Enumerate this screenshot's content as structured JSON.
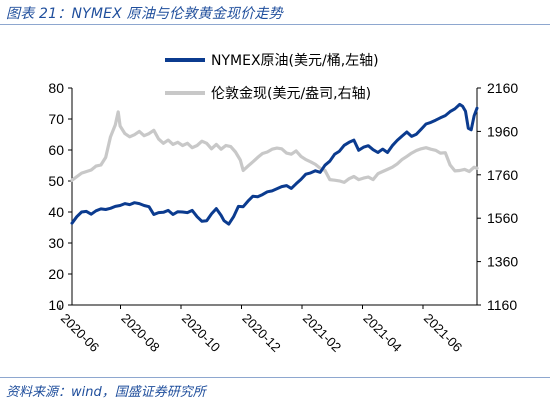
{
  "figure": {
    "title": "图表 21：NYMEX 原油与伦敦黄金现价走势",
    "source": "资料来源：wind，国盛证券研究所"
  },
  "chart_data": {
    "type": "line",
    "xlabels": [
      "2020-06",
      "2020-08",
      "2020-10",
      "2020-12",
      "2021-02",
      "2021-04",
      "2021-06"
    ],
    "y_left": {
      "range": [
        10,
        80
      ],
      "ticks": [
        10,
        20,
        30,
        40,
        50,
        60,
        70,
        80
      ]
    },
    "y_right": {
      "range": [
        1160,
        2160
      ],
      "ticks": [
        1160,
        1360,
        1560,
        1760,
        1960,
        2160
      ]
    },
    "grid": false,
    "legend_position": "top-right",
    "series": [
      {
        "name": "NYMEX原油(美元/桶,左轴)",
        "axis": "left",
        "color": "#0b3b8f",
        "values": [
          [
            0,
            36.4
          ],
          [
            5,
            38.5
          ],
          [
            10,
            40
          ],
          [
            15,
            40.2
          ],
          [
            20,
            39.3
          ],
          [
            25,
            40.4
          ],
          [
            30,
            41
          ],
          [
            35,
            40.8
          ],
          [
            40,
            41.2
          ],
          [
            45,
            41.8
          ],
          [
            50,
            42.1
          ],
          [
            55,
            42.7
          ],
          [
            60,
            42.4
          ],
          [
            65,
            43
          ],
          [
            70,
            42.7
          ],
          [
            75,
            42.1
          ],
          [
            80,
            41.7
          ],
          [
            85,
            39.2
          ],
          [
            90,
            39.8
          ],
          [
            95,
            39.9
          ],
          [
            100,
            40.5
          ],
          [
            105,
            39.2
          ],
          [
            110,
            40.1
          ],
          [
            115,
            40
          ],
          [
            120,
            39.8
          ],
          [
            125,
            40.5
          ],
          [
            130,
            38.5
          ],
          [
            135,
            37
          ],
          [
            140,
            37.2
          ],
          [
            145,
            39.4
          ],
          [
            150,
            41.1
          ],
          [
            155,
            38.9
          ],
          [
            158,
            37.2
          ],
          [
            163,
            36.1
          ],
          [
            168,
            38.5
          ],
          [
            173,
            41.8
          ],
          [
            178,
            41.7
          ],
          [
            183,
            43.5
          ],
          [
            188,
            45.1
          ],
          [
            193,
            44.9
          ],
          [
            198,
            45.6
          ],
          [
            203,
            46.5
          ],
          [
            208,
            46.8
          ],
          [
            213,
            47.5
          ],
          [
            218,
            48.2
          ],
          [
            223,
            48.5
          ],
          [
            228,
            47.6
          ],
          [
            233,
            49.1
          ],
          [
            238,
            50.5
          ],
          [
            243,
            52.2
          ],
          [
            248,
            52.6
          ],
          [
            253,
            53.3
          ],
          [
            258,
            52.8
          ],
          [
            263,
            55.1
          ],
          [
            268,
            56.4
          ],
          [
            273,
            58.6
          ],
          [
            278,
            59.6
          ],
          [
            283,
            61.5
          ],
          [
            288,
            62.5
          ],
          [
            293,
            63.2
          ],
          [
            298,
            59.9
          ],
          [
            303,
            60.9
          ],
          [
            308,
            61.4
          ],
          [
            313,
            60.1
          ],
          [
            318,
            59.2
          ],
          [
            323,
            60.3
          ],
          [
            328,
            59.2
          ],
          [
            333,
            61.4
          ],
          [
            338,
            63.1
          ],
          [
            343,
            64.5
          ],
          [
            348,
            65.8
          ],
          [
            353,
            64.4
          ],
          [
            358,
            65.1
          ],
          [
            363,
            66.7
          ],
          [
            368,
            68.4
          ],
          [
            373,
            68.9
          ],
          [
            378,
            69.6
          ],
          [
            383,
            70.4
          ],
          [
            388,
            71.1
          ],
          [
            393,
            72.4
          ],
          [
            398,
            73.3
          ],
          [
            403,
            74.7
          ],
          [
            406,
            74.1
          ],
          [
            409,
            72.5
          ],
          [
            412,
            67
          ],
          [
            415,
            66.5
          ],
          [
            418,
            71
          ],
          [
            421,
            73.5
          ]
        ]
      },
      {
        "name": "伦敦金现(美元/盎司,右轴)",
        "axis": "right",
        "color": "#c8c8c8",
        "values": [
          [
            0,
            1735
          ],
          [
            10,
            1768
          ],
          [
            20,
            1782
          ],
          [
            25,
            1800
          ],
          [
            30,
            1805
          ],
          [
            35,
            1840
          ],
          [
            40,
            1935
          ],
          [
            45,
            1990
          ],
          [
            48,
            2050
          ],
          [
            50,
            1985
          ],
          [
            55,
            1950
          ],
          [
            60,
            1935
          ],
          [
            65,
            1945
          ],
          [
            70,
            1960
          ],
          [
            75,
            1940
          ],
          [
            80,
            1950
          ],
          [
            85,
            1965
          ],
          [
            90,
            1925
          ],
          [
            95,
            1905
          ],
          [
            100,
            1920
          ],
          [
            105,
            1900
          ],
          [
            110,
            1910
          ],
          [
            115,
            1895
          ],
          [
            120,
            1905
          ],
          [
            125,
            1885
          ],
          [
            130,
            1895
          ],
          [
            135,
            1915
          ],
          [
            140,
            1905
          ],
          [
            145,
            1880
          ],
          [
            150,
            1900
          ],
          [
            155,
            1878
          ],
          [
            160,
            1895
          ],
          [
            165,
            1890
          ],
          [
            170,
            1865
          ],
          [
            175,
            1828
          ],
          [
            178,
            1780
          ],
          [
            183,
            1800
          ],
          [
            188,
            1820
          ],
          [
            193,
            1840
          ],
          [
            198,
            1858
          ],
          [
            203,
            1865
          ],
          [
            208,
            1878
          ],
          [
            213,
            1883
          ],
          [
            218,
            1880
          ],
          [
            223,
            1860
          ],
          [
            228,
            1855
          ],
          [
            233,
            1870
          ],
          [
            238,
            1845
          ],
          [
            243,
            1830
          ],
          [
            248,
            1820
          ],
          [
            253,
            1808
          ],
          [
            258,
            1790
          ],
          [
            263,
            1780
          ],
          [
            268,
            1738
          ],
          [
            273,
            1735
          ],
          [
            278,
            1732
          ],
          [
            283,
            1725
          ],
          [
            288,
            1742
          ],
          [
            293,
            1752
          ],
          [
            298,
            1738
          ],
          [
            303,
            1745
          ],
          [
            308,
            1750
          ],
          [
            313,
            1738
          ],
          [
            318,
            1765
          ],
          [
            323,
            1775
          ],
          [
            328,
            1785
          ],
          [
            333,
            1795
          ],
          [
            338,
            1810
          ],
          [
            343,
            1830
          ],
          [
            348,
            1845
          ],
          [
            353,
            1860
          ],
          [
            358,
            1872
          ],
          [
            363,
            1880
          ],
          [
            368,
            1885
          ],
          [
            373,
            1878
          ],
          [
            378,
            1873
          ],
          [
            383,
            1860
          ],
          [
            388,
            1862
          ],
          [
            393,
            1805
          ],
          [
            398,
            1778
          ],
          [
            403,
            1780
          ],
          [
            408,
            1785
          ],
          [
            413,
            1775
          ],
          [
            418,
            1795
          ],
          [
            421,
            1790
          ]
        ]
      }
    ]
  }
}
